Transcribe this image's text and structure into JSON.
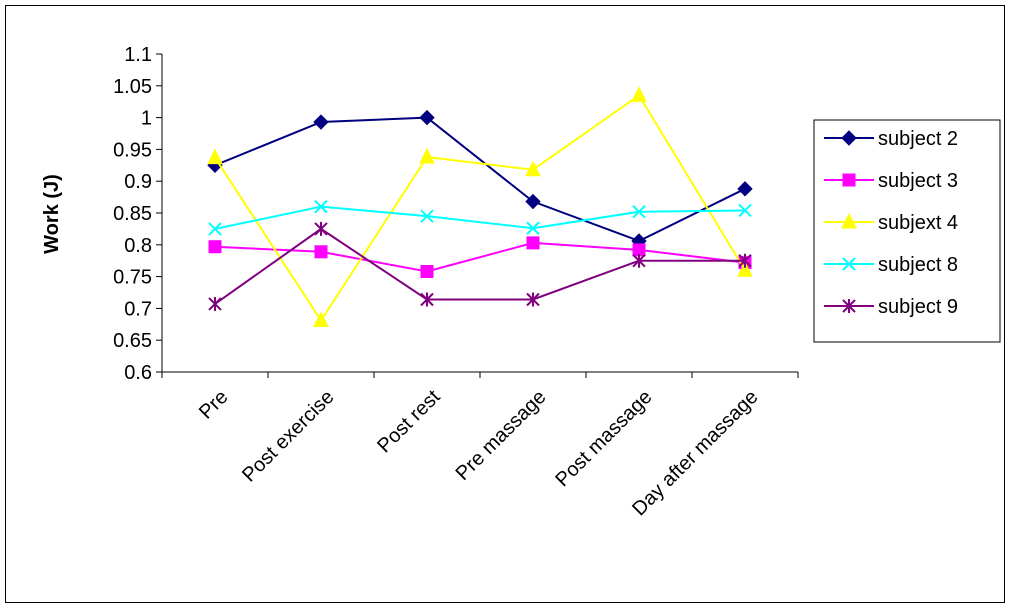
{
  "chart_data": {
    "type": "line",
    "title": "",
    "xlabel": "",
    "ylabel": "Work (J)",
    "categories": [
      "Pre",
      "Post exercise",
      "Post rest",
      "Pre massage",
      "Post massage",
      "Day after massage"
    ],
    "ylim": [
      0.6,
      1.1
    ],
    "yticks": [
      "0.6",
      "0.65",
      "0.7",
      "0.75",
      "0.8",
      "0.85",
      "0.9",
      "0.95",
      "1",
      "1.05",
      "1.1"
    ],
    "grid": false,
    "legend_position": "right",
    "series": [
      {
        "name": "subject 2",
        "color": "#000080",
        "marker": "diamond",
        "values": [
          0.925,
          0.993,
          1.0,
          0.868,
          0.806,
          0.888
        ]
      },
      {
        "name": "subject 3",
        "color": "#FF00FF",
        "marker": "square",
        "values": [
          0.797,
          0.789,
          0.758,
          0.803,
          0.792,
          0.772
        ]
      },
      {
        "name": "subjext 4",
        "color": "#FFFF00",
        "marker": "triangle",
        "values": [
          0.937,
          0.681,
          0.938,
          0.918,
          1.035,
          0.76
        ]
      },
      {
        "name": "subject 8",
        "color": "#00FFFF",
        "marker": "x",
        "values": [
          0.825,
          0.86,
          0.845,
          0.826,
          0.852,
          0.854
        ]
      },
      {
        "name": "subject 9",
        "color": "#800080",
        "marker": "star",
        "values": [
          0.707,
          0.825,
          0.714,
          0.714,
          0.775,
          0.775
        ]
      }
    ]
  }
}
